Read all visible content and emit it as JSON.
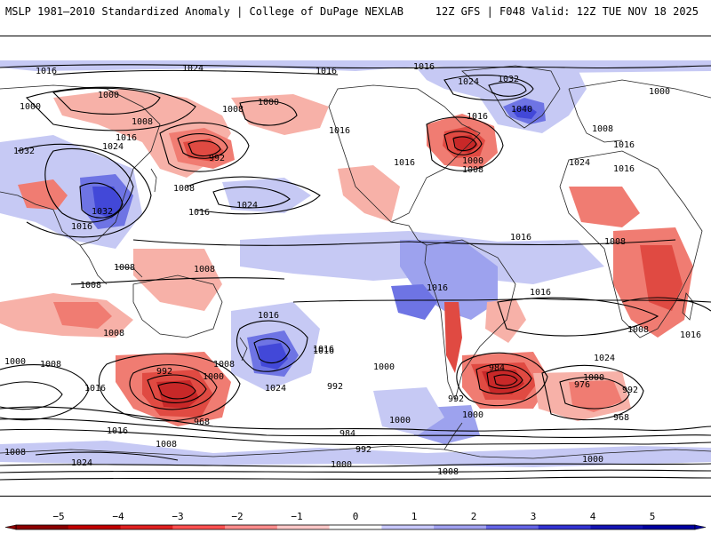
{
  "header": {
    "left_title": "MSLP 1981–2010 Standardized Anomaly | College of DuPage NEXLAB",
    "right_title": "12Z GFS | F048 Valid: 12Z TUE NOV 18 2025"
  },
  "isobar_labels": [
    "1016",
    "1024",
    "1016",
    "1016",
    "1024",
    "1032",
    "1000",
    "1000",
    "1000",
    "1008",
    "1016",
    "1016",
    "1000",
    "1032",
    "1008",
    "1024",
    "1016",
    "1008",
    "1016",
    "1040",
    "1016",
    "1024",
    "1008",
    "1000",
    "992",
    "1008",
    "1016",
    "1016",
    "1016",
    "1008",
    "1024",
    "1016",
    "1032",
    "1008",
    "1016",
    "1008",
    "1008",
    "1016",
    "1016",
    "1008",
    "1008",
    "1016",
    "1016",
    "1024",
    "992",
    "1000",
    "1008",
    "1016",
    "1024",
    "984",
    "1000",
    "1008",
    "992",
    "1016",
    "1000",
    "968",
    "976",
    "992",
    "1000",
    "1016",
    "968",
    "992",
    "1000",
    "1000",
    "1008",
    "984",
    "992",
    "1024",
    "1008",
    "1000",
    "1008",
    "1000"
  ],
  "anomaly_colors": {
    "neg5": "#a01010",
    "neg4": "#c82828",
    "neg3": "#e04a42",
    "neg2": "#f07c72",
    "neg1": "#f7b1a8",
    "neutral": "#ffffff",
    "pos1": "#c6c9f4",
    "pos2": "#9da2ee",
    "pos3": "#6e74e4",
    "pos4": "#4248d8",
    "pos5": "#2020b8"
  },
  "colorbar": {
    "ticks": [
      "−5",
      "−4",
      "−3",
      "−2",
      "−1",
      "0",
      "1",
      "2",
      "3",
      "4",
      "5"
    ],
    "colors": [
      "#8c0000",
      "#c00000",
      "#e02020",
      "#ff5050",
      "#ff8c8c",
      "#ffc8c8",
      "#ffffff",
      "#c8c8ff",
      "#a0a0f0",
      "#6464e6",
      "#3232d2",
      "#1414b4",
      "#0000a0"
    ]
  }
}
